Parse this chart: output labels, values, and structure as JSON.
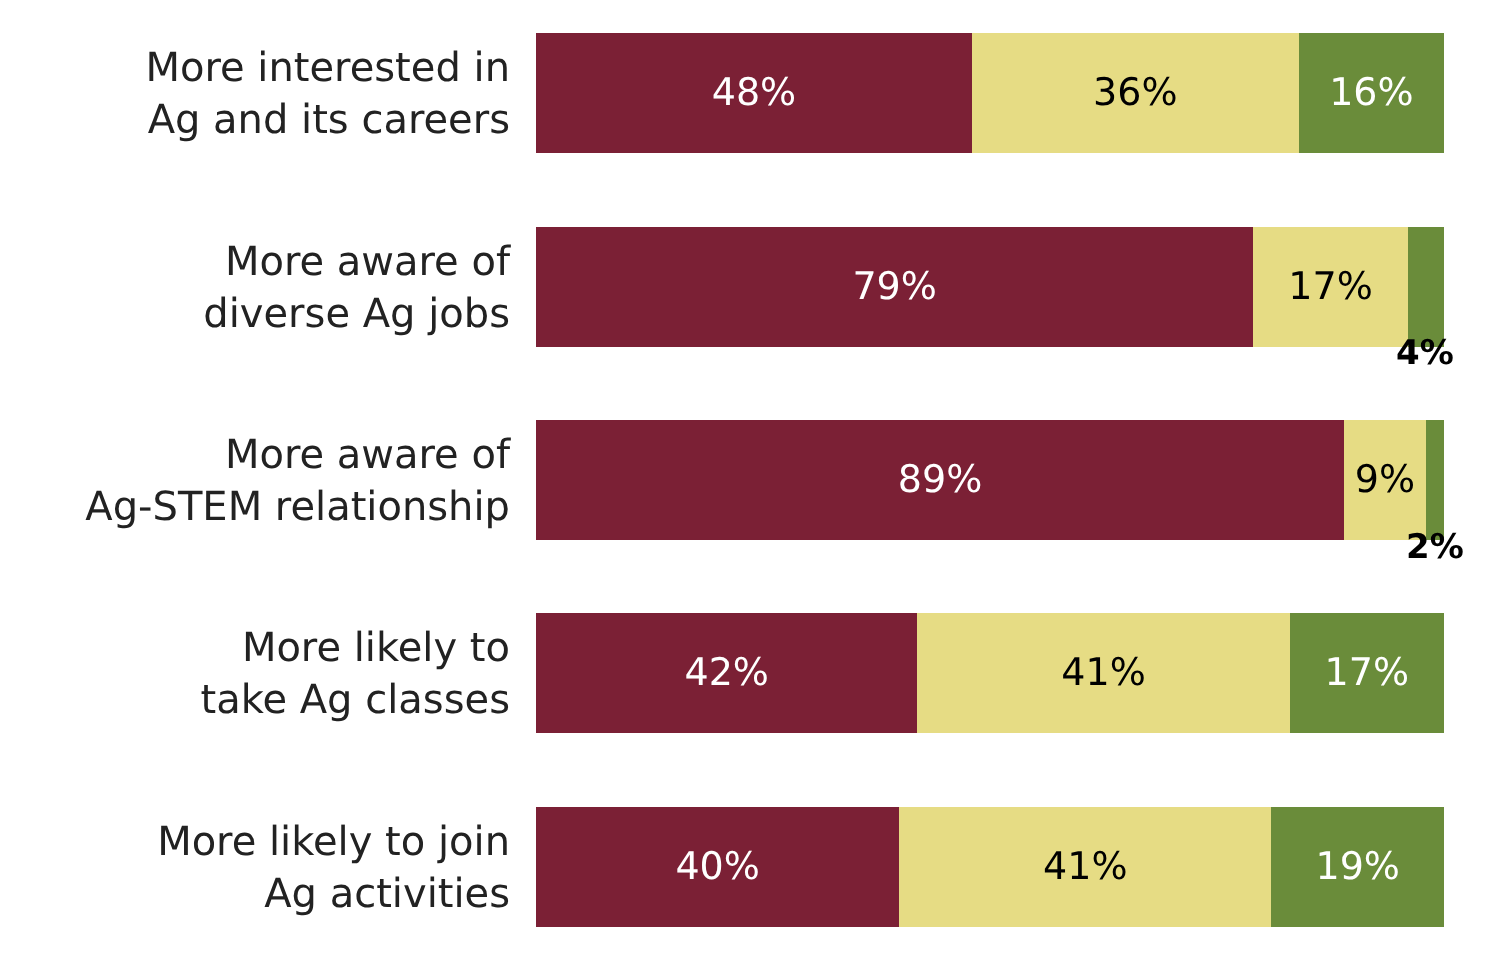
{
  "chart_data": {
    "type": "bar",
    "orientation": "horizontal",
    "stacked": true,
    "categories": [
      "More interested in\nAg and its careers",
      "More aware of\ndiverse Ag jobs",
      "More aware of\nAg-STEM relationship",
      "More likely to\ntake Ag classes",
      "More likely to join\nAg activities"
    ],
    "series": [
      {
        "color": "#7b2035",
        "values": [
          48,
          79,
          89,
          42,
          40
        ],
        "value_labels": [
          "48%",
          "79%",
          "89%",
          "42%",
          "40%"
        ]
      },
      {
        "color": "#e6dc84",
        "values": [
          36,
          17,
          9,
          41,
          41
        ],
        "value_labels": [
          "36%",
          "17%",
          "9%",
          "41%",
          "41%"
        ]
      },
      {
        "color": "#6a8c3a",
        "values": [
          16,
          4,
          2,
          17,
          19
        ],
        "value_labels": [
          "16%",
          "4%",
          "2%",
          "17%",
          "19%"
        ]
      }
    ],
    "xlim": [
      0,
      100
    ],
    "tick_labels": "y",
    "legend": false
  }
}
